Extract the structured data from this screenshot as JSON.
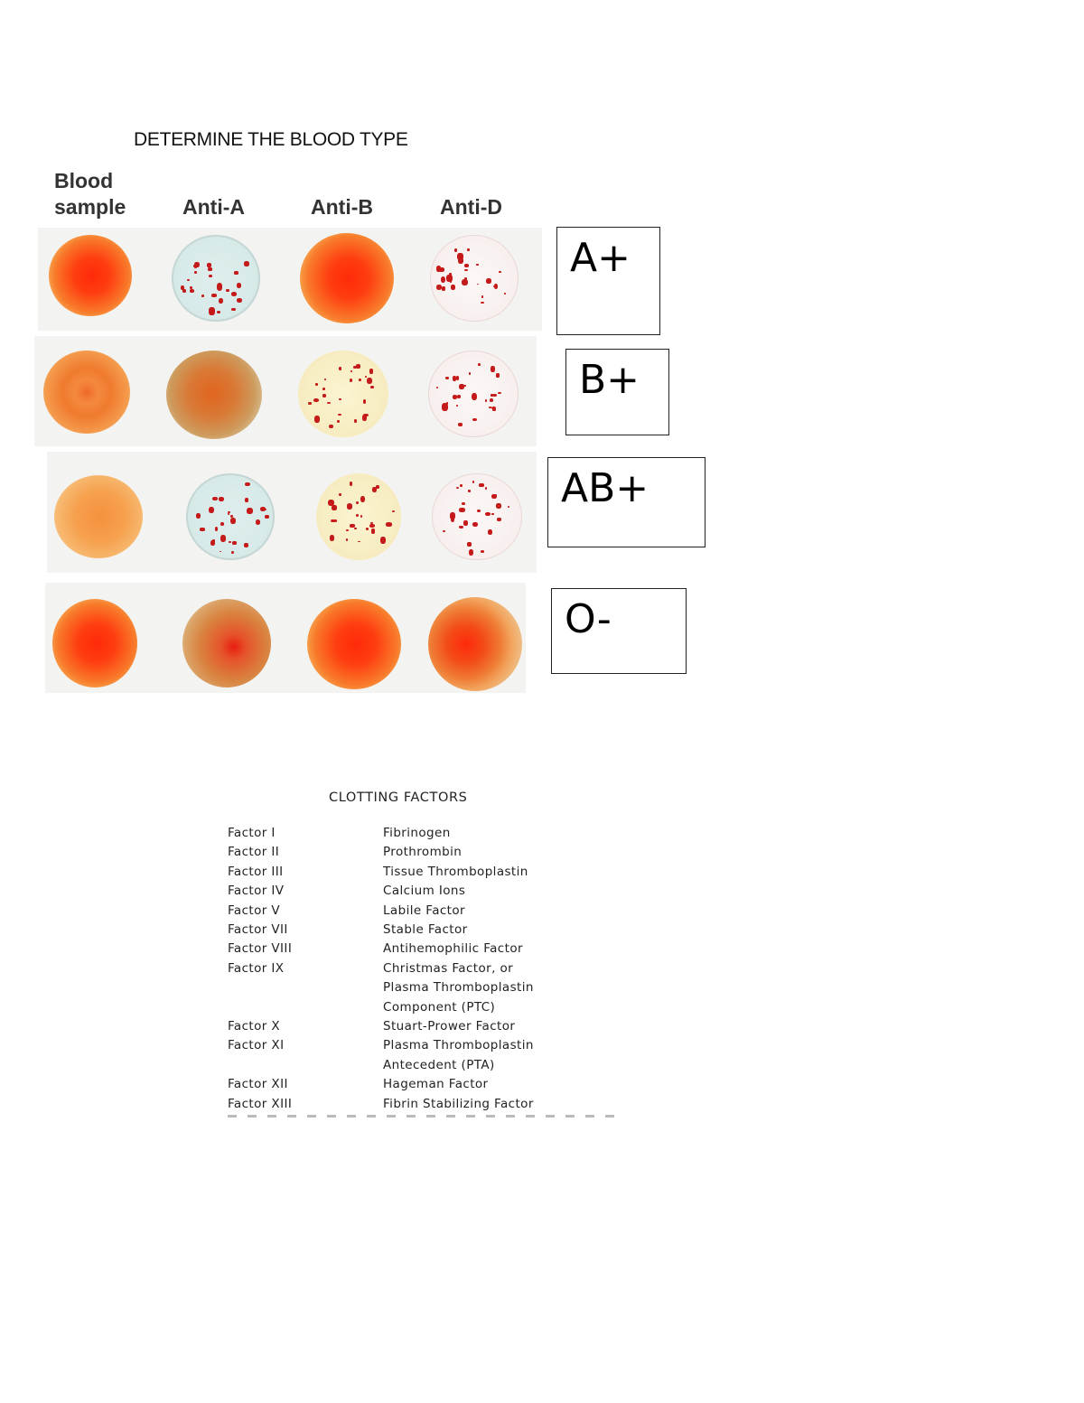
{
  "title": "DETERMINE THE BLOOD TYPE",
  "columns": [
    {
      "line1": "Blood",
      "line2": "sample"
    },
    {
      "line1": "",
      "line2": "Anti-A"
    },
    {
      "line1": "",
      "line2": "Anti-B"
    },
    {
      "line1": "",
      "line2": "Anti-D"
    }
  ],
  "answers": [
    "A+",
    "B+",
    "AB+",
    "O-"
  ],
  "clotting": {
    "title": "CLOTTING FACTORS",
    "rows": [
      {
        "factor": "Factor I",
        "name": [
          "Fibrinogen"
        ]
      },
      {
        "factor": "Factor II",
        "name": [
          "Prothrombin"
        ]
      },
      {
        "factor": "Factor III",
        "name": [
          "Tissue Thromboplastin"
        ]
      },
      {
        "factor": "Factor IV",
        "name": [
          "Calcium Ions"
        ]
      },
      {
        "factor": "Factor V",
        "name": [
          "Labile Factor"
        ]
      },
      {
        "factor": "Factor VII",
        "name": [
          "Stable Factor"
        ]
      },
      {
        "factor": "Factor VIII",
        "name": [
          "Antihemophilic Factor"
        ]
      },
      {
        "factor": "Factor IX",
        "name": [
          "Christmas Factor, or",
          "Plasma Thromboplastin",
          "Component (PTC)"
        ]
      },
      {
        "factor": "Factor X",
        "name": [
          "Stuart-Prower Factor"
        ]
      },
      {
        "factor": "Factor XI",
        "name": [
          "Plasma Thromboplastin",
          "Antecedent (PTA)"
        ]
      },
      {
        "factor": "Factor XII",
        "name": [
          "Hageman Factor"
        ]
      },
      {
        "factor": "Factor XIII",
        "name": [
          "Fibrin Stabilizing Factor"
        ]
      }
    ]
  }
}
